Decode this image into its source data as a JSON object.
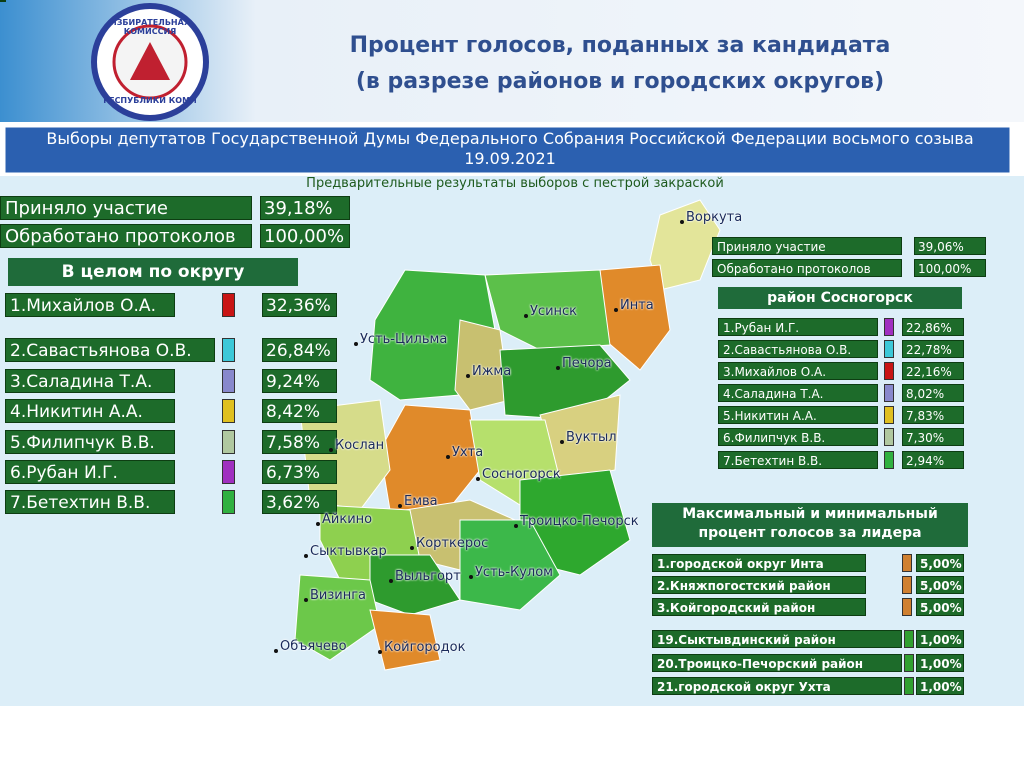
{
  "header": {
    "logo_top": "ИЗБИРАТЕЛЬНАЯ КОМИССИЯ",
    "logo_bottom": "РЕСПУБЛИКИ КОМИ",
    "title": [
      "Процент голосов, поданных за кандидата",
      "(в разрезе районов и городских округов)"
    ]
  },
  "banner": "Выборы депутатов Государственной Думы Федерального Собрания Российской Федерации восьмого созыва 19.09.2021",
  "subtitle": "Предварительные результаты выборов с пестрой закраской",
  "overall": {
    "stats": [
      [
        "Приняло участие",
        "39,18%"
      ],
      [
        "Обработано протоколов",
        "100,00%"
      ]
    ],
    "heading": "В целом по округу",
    "rows": [
      {
        "name": "1.Михайлов О.А.",
        "value": "32,36%",
        "color": "#c81414"
      },
      {
        "name": "2.Савастьянова О.В.",
        "value": "26,84%",
        "color": "#3cc8d8"
      },
      {
        "name": "3.Саладина Т.А.",
        "value": "9,24%",
        "color": "#8888cc"
      },
      {
        "name": "4.Никитин А.А.",
        "value": "8,42%",
        "color": "#e0c020"
      },
      {
        "name": "5.Филипчук В.В.",
        "value": "7,58%",
        "color": "#b0c8a0"
      },
      {
        "name": "6.Рубан И.Г.",
        "value": "6,73%",
        "color": "#a030c0"
      },
      {
        "name": "7.Бетехтин В.В.",
        "value": "3,62%",
        "color": "#30b040"
      }
    ]
  },
  "map": {
    "labels": [
      "Воркута",
      "Инта",
      "Усинск",
      "Усть-Цильма",
      "Ижма",
      "Печора",
      "Вуктыл",
      "Ухта",
      "Сосногорск",
      "Кослан",
      "Емва",
      "Троицко-Печорск",
      "Айкино",
      "Корткерос",
      "Сыктывкар",
      "Выльгорт",
      "Усть-Кулом",
      "Визинга",
      "Объячево",
      "Койгородок"
    ]
  },
  "sosnogorsk": {
    "stats": [
      [
        "Приняло участие",
        "39,06%"
      ],
      [
        "Обработано протоколов",
        "100,00%"
      ]
    ],
    "heading": "район Сосногорск",
    "rows": [
      {
        "name": "1.Рубан И.Г.",
        "value": "22,86%",
        "color": "#a030c0"
      },
      {
        "name": "2.Савастьянова О.В.",
        "value": "22,78%",
        "color": "#3cc8d8"
      },
      {
        "name": "3.Михайлов О.А.",
        "value": "22,16%",
        "color": "#c81414"
      },
      {
        "name": "4.Саладина Т.А.",
        "value": "8,02%",
        "color": "#8888cc"
      },
      {
        "name": "5.Никитин А.А.",
        "value": "7,83%",
        "color": "#e0c020"
      },
      {
        "name": "6.Филипчук В.В.",
        "value": "7,30%",
        "color": "#b0c8a0"
      },
      {
        "name": "7.Бетехтин В.В.",
        "value": "2,94%",
        "color": "#30b040"
      }
    ]
  },
  "maxmin": {
    "heading": "Максимальный и минимальный процент голосов за лидера",
    "max_rows": [
      {
        "name": "1.городской округ Инта",
        "value": "5,00%",
        "color": "#d08030"
      },
      {
        "name": "2.Княжпогостский район",
        "value": "5,00%",
        "color": "#d08030"
      },
      {
        "name": "3.Койгородский район",
        "value": "5,00%",
        "color": "#d08030"
      }
    ],
    "min_rows": [
      {
        "name": "19.Сыктывдинский район",
        "value": "1,00%",
        "color": "#30a030"
      },
      {
        "name": "20.Троицко-Печорский район",
        "value": "1,00%",
        "color": "#30a030"
      },
      {
        "name": "21.городской округ Ухта",
        "value": "1,00%",
        "color": "#30a030"
      }
    ]
  }
}
